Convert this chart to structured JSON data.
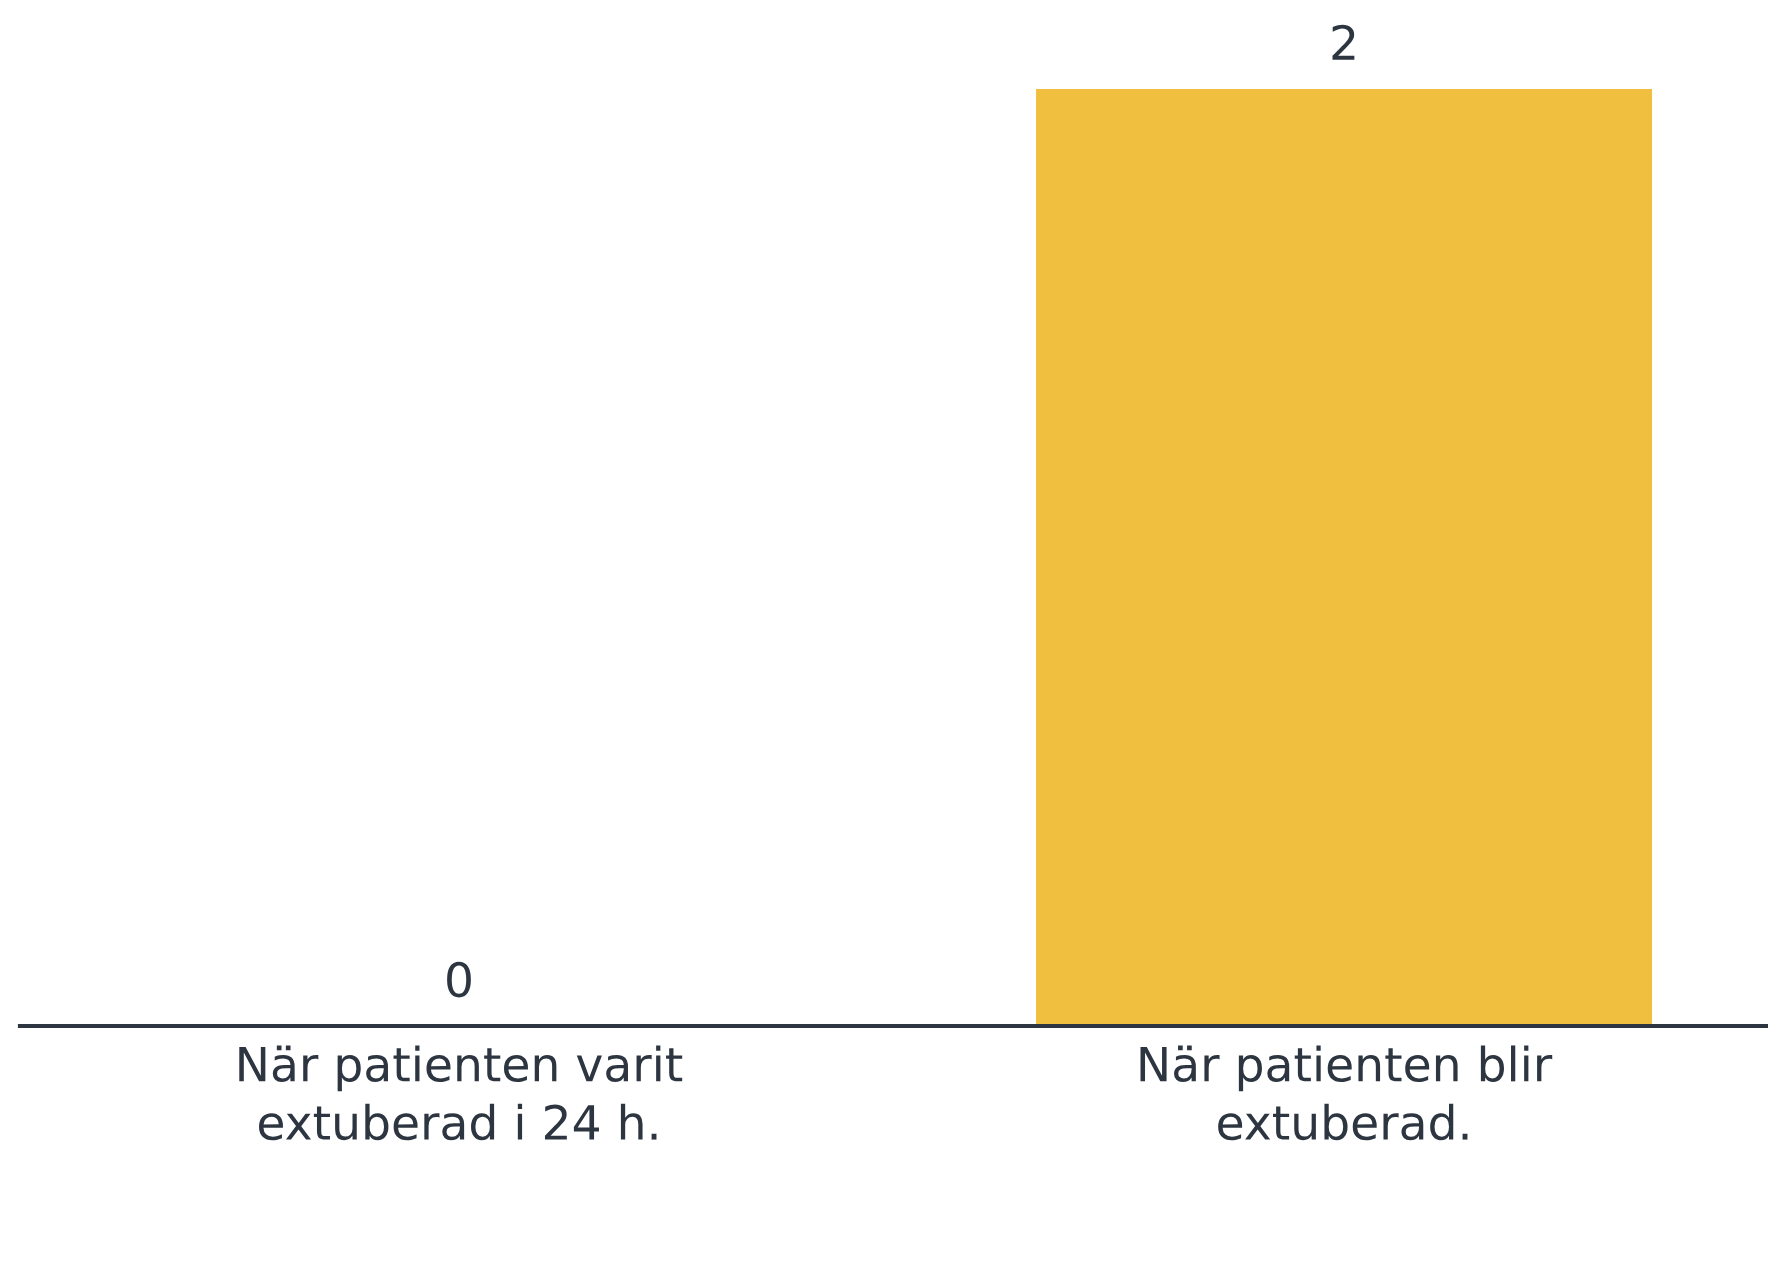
{
  "chart_data": {
    "type": "bar",
    "categories": [
      "När patienten varit extuberad i 24 h.",
      "När patienten blir extuberad."
    ],
    "values": [
      0,
      2
    ],
    "color": "#f0bf3f",
    "data_labels": true,
    "grid": false,
    "legend": false
  }
}
